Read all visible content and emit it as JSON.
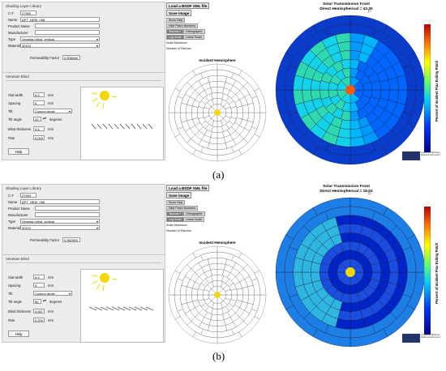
{
  "panels": [
    {
      "id": "a",
      "caption": "(a)",
      "library_title": "Shading Layer Library",
      "id_label": "C #",
      "id_value": "27900",
      "name_label": "Name",
      "name_value": "APT_NEW_058",
      "product_label": "Product Name",
      "manufacturer_label": "Manufacturer",
      "type_label": "Type",
      "type_value": "Venetian blind, vertical",
      "material_label": "Material",
      "material_value": "30101",
      "permeability_label": "Permeability Factor",
      "permeability_value": "0.906558",
      "blind_title": "Venetian Blind",
      "slat_width_label": "Slat width",
      "slat_width_value": "6.5",
      "spacing_label": "Spacing",
      "spacing_value": "5",
      "tilt_label": "Tilt",
      "tilt_value": "Custom angle",
      "tilt_angle_label": "Tilt angle",
      "tilt_angle_value": "20",
      "blind_thickness_label": "Blind thickness",
      "blind_thickness_value": "0.6",
      "rise_label": "Rise",
      "rise_value": "0.009",
      "unit_mm": "mm",
      "unit_degrees": "degrees",
      "help_label": "Help",
      "load_label": "Load a BSDF XML file",
      "save_label": "Save image",
      "show_help": "Show Help",
      "hide_numbers": "Hide Patch Numbers",
      "standard": "Standard",
      "orthographic": "Orthographic",
      "log_scale": "Log Scale",
      "linear_scale": "Linear Scale",
      "scale_max": "Scale Maximum",
      "num_patches": "Number of Patches",
      "hemisphere_title": "Incident Hemisphere",
      "plot_title": "Solar Transmission Front",
      "plot_subtitle": "Direct Hemispherical = 43.30",
      "colorbar_label": "Percent of Incident Flux Exiting Patch",
      "lab_name": "Lawrence Berkeley National Laboratory"
    },
    {
      "id": "b",
      "caption": "(b)",
      "library_title": "Shading Layer Library",
      "id_label": "C #",
      "id_value": "27903",
      "name_label": "Name",
      "name_value": "APT_NEW_056",
      "product_label": "Product Name",
      "manufacturer_label": "Manufacturer",
      "type_label": "Type",
      "type_value": "Venetian blind, vertical",
      "material_label": "Material",
      "material_value": "30101",
      "permeability_label": "Permeability Factor",
      "permeability_value": "0.962955",
      "blind_title": "Venetian Blind",
      "slat_width_label": "Slat width",
      "slat_width_value": "6.5",
      "spacing_label": "Spacing",
      "spacing_value": "5",
      "tilt_label": "Tilt",
      "tilt_value": "Custom angle",
      "tilt_angle_label": "Tilt angle",
      "tilt_angle_value": "50",
      "blind_thickness_label": "Blind thickness",
      "blind_thickness_value": "0.657",
      "rise_label": "Rise",
      "rise_value": "0.200",
      "unit_mm": "mm",
      "unit_degrees": "degrees",
      "help_label": "Help",
      "load_label": "Load a BSDF XML file",
      "save_label": "Save image",
      "show_help": "Show Help",
      "hide_numbers": "Hide Patch Numbers",
      "standard": "Standard",
      "orthographic": "Orthographic",
      "log_scale": "Log Scale",
      "linear_scale": "Linear Scale",
      "scale_max": "Scale Maximum",
      "num_patches": "Number of Patches",
      "hemisphere_title": "Incident Hemisphere",
      "plot_title": "Solar Transmission Front",
      "plot_subtitle": "Direct Hemispherical = 19.53",
      "colorbar_label": "Percent of Incident Flux Exiting Patch",
      "lab_name": "Lawrence Berkeley National Laboratory"
    }
  ],
  "colors": {
    "sun": "#f2d700",
    "panel_bg": "#ececec",
    "hot_patch": "#ff5a00"
  },
  "icons": [
    "sun-icon",
    "slat-icon",
    "cursor-icon"
  ]
}
